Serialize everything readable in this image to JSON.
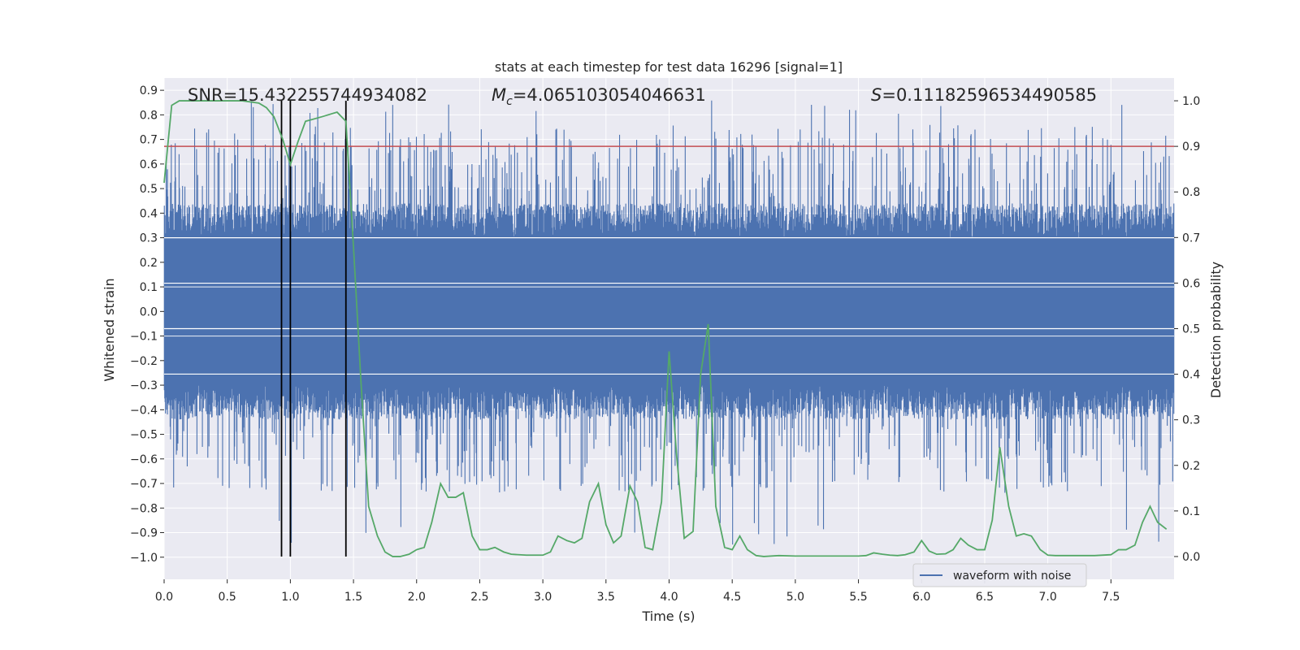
{
  "chart_data": {
    "type": "line",
    "title": "stats at each timestep for test data 16296 [signal=1]",
    "xlabel": "Time (s)",
    "ylabel": "Whitened strain",
    "y2label": "Detection probability",
    "xlim": [
      0.0,
      8.0
    ],
    "ylim": [
      -1.09,
      0.95
    ],
    "y2lim": [
      -0.05,
      1.05
    ],
    "x_ticks": [
      0.0,
      0.5,
      1.0,
      1.5,
      2.0,
      2.5,
      3.0,
      3.5,
      4.0,
      4.5,
      5.0,
      5.5,
      6.0,
      6.5,
      7.0,
      7.5
    ],
    "y_ticks": [
      0.9,
      0.8,
      0.7,
      0.6,
      0.5,
      0.4,
      0.3,
      0.2,
      0.1,
      0.0,
      -0.1,
      -0.2,
      -0.3,
      -0.4,
      -0.5,
      -0.6,
      -0.7,
      -0.8,
      -0.9,
      -1.0
    ],
    "y2_ticks": [
      1.0,
      0.9,
      0.8,
      0.7,
      0.6,
      0.5,
      0.4,
      0.3,
      0.2,
      0.1,
      0.0
    ],
    "grid": true,
    "legend_position": "bottom-right",
    "annotations": {
      "snr": "SNR=15.432255744934082",
      "mc_prefix": "M",
      "mc_sub": "c",
      "mc_value": "=4.065103054046631",
      "s_prefix": "S",
      "s_value": "=0.11182596534490585"
    },
    "threshold": 0.9,
    "vlines": [
      0.93,
      1.0,
      1.44
    ],
    "series": [
      {
        "name": "waveform with noise",
        "axis": "left",
        "color": "#4c72b0",
        "envelope": "dense noise, most samples within ±0.3, spikes up to 0.86 and down to -1.0"
      },
      {
        "axis": "right",
        "color": "#55a868",
        "x": [
          0.0,
          0.06,
          0.12,
          0.25,
          0.5,
          0.62,
          0.75,
          0.81,
          0.87,
          0.94,
          1.0,
          1.06,
          1.12,
          1.25,
          1.37,
          1.44,
          1.5,
          1.56,
          1.62,
          1.69,
          1.75,
          1.81,
          1.87,
          1.94,
          2.0,
          2.06,
          2.12,
          2.19,
          2.25,
          2.31,
          2.37,
          2.44,
          2.5,
          2.56,
          2.62,
          2.69,
          2.75,
          2.87,
          3.0,
          3.06,
          3.12,
          3.19,
          3.25,
          3.31,
          3.37,
          3.44,
          3.5,
          3.56,
          3.62,
          3.69,
          3.75,
          3.81,
          3.87,
          3.94,
          4.0,
          4.06,
          4.12,
          4.19,
          4.25,
          4.31,
          4.37,
          4.44,
          4.5,
          4.56,
          4.62,
          4.69,
          4.75,
          4.87,
          5.0,
          5.25,
          5.5,
          5.56,
          5.62,
          5.69,
          5.75,
          5.81,
          5.87,
          5.94,
          6.0,
          6.06,
          6.12,
          6.19,
          6.25,
          6.31,
          6.37,
          6.44,
          6.5,
          6.56,
          6.62,
          6.69,
          6.75,
          6.81,
          6.87,
          6.94,
          7.0,
          7.06,
          7.12,
          7.25,
          7.37,
          7.5,
          7.56,
          7.62,
          7.69,
          7.75,
          7.81,
          7.87,
          7.94
        ],
        "values": [
          0.82,
          0.99,
          1.0,
          1.0,
          1.0,
          1.0,
          0.995,
          0.985,
          0.965,
          0.915,
          0.86,
          0.91,
          0.955,
          0.965,
          0.975,
          0.955,
          0.68,
          0.38,
          0.11,
          0.045,
          0.01,
          0.0,
          0.0,
          0.005,
          0.015,
          0.02,
          0.075,
          0.16,
          0.13,
          0.13,
          0.14,
          0.045,
          0.015,
          0.015,
          0.02,
          0.01,
          0.005,
          0.003,
          0.003,
          0.01,
          0.045,
          0.035,
          0.03,
          0.04,
          0.12,
          0.16,
          0.07,
          0.03,
          0.045,
          0.155,
          0.12,
          0.02,
          0.015,
          0.12,
          0.45,
          0.22,
          0.04,
          0.055,
          0.4,
          0.51,
          0.11,
          0.02,
          0.015,
          0.045,
          0.015,
          0.002,
          0.0,
          0.002,
          0.001,
          0.001,
          0.001,
          0.002,
          0.008,
          0.005,
          0.003,
          0.002,
          0.004,
          0.01,
          0.035,
          0.012,
          0.005,
          0.006,
          0.015,
          0.04,
          0.025,
          0.015,
          0.015,
          0.08,
          0.24,
          0.11,
          0.045,
          0.05,
          0.045,
          0.015,
          0.003,
          0.002,
          0.002,
          0.002,
          0.002,
          0.004,
          0.015,
          0.015,
          0.025,
          0.075,
          0.11,
          0.075,
          0.06
        ]
      }
    ]
  }
}
